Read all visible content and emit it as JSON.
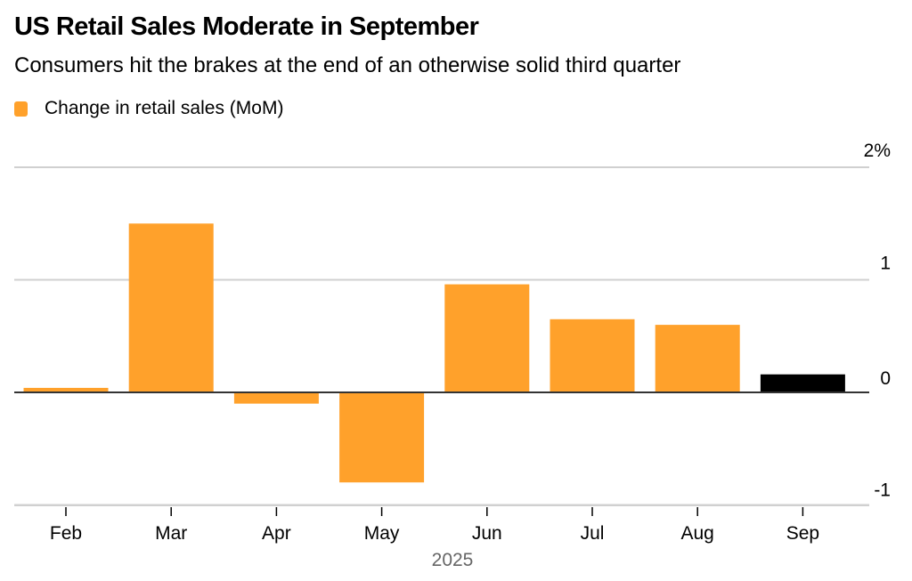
{
  "header": {
    "title": "US Retail Sales Moderate in September",
    "subtitle": "Consumers hit the brakes at the end of an otherwise solid third quarter"
  },
  "legend": [
    {
      "label": "Change in retail sales (MoM)",
      "color": "#FFA12B"
    }
  ],
  "chart_data": {
    "type": "bar",
    "title": "US Retail Sales Moderate in September",
    "subtitle": "Consumers hit the brakes at the end of an otherwise solid third quarter",
    "categories": [
      "Feb",
      "Mar",
      "Apr",
      "May",
      "Jun",
      "Jul",
      "Aug",
      "Sep"
    ],
    "xlabel": "2025",
    "ylabel": "",
    "series": [
      {
        "name": "Change in retail sales (MoM)",
        "values": [
          0.04,
          1.5,
          -0.1,
          -0.8,
          0.96,
          0.65,
          0.6,
          0.16
        ],
        "color": "#FFA12B",
        "highlight_color": "#000000",
        "highlight_index": 7
      }
    ],
    "ylim": [
      -1,
      2
    ],
    "yticks": [
      {
        "value": 2,
        "label": "2%"
      },
      {
        "value": 1,
        "label": "1"
      },
      {
        "value": 0,
        "label": "0"
      },
      {
        "value": -1,
        "label": "-1"
      }
    ],
    "grid": true,
    "y_axis_position": "right",
    "legend_position": "top-left"
  }
}
